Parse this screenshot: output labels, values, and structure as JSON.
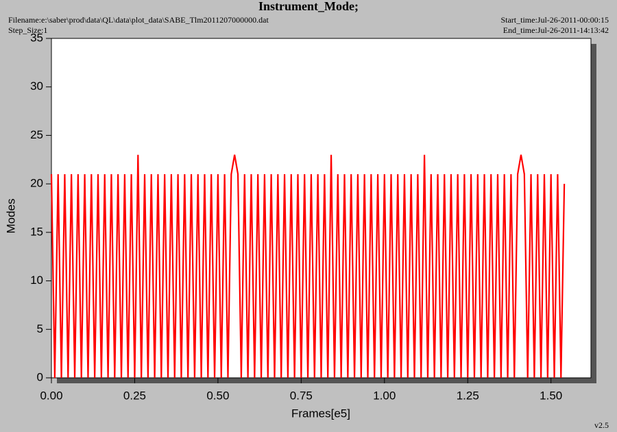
{
  "chart_data": {
    "type": "line",
    "title": "Instrument_Mode;",
    "annotations": [
      "Filename:e:\\saber\\prod\\data\\QL\\data\\plot_data\\SABE_Tlm2011207000000.dat",
      "Step_Size:1",
      "Start_time:Jul-26-2011-00:00:15",
      "End_time:Jul-26-2011-14:13:42",
      "v2.5"
    ],
    "x_label": "Frames[e5]",
    "y_label": "Modes",
    "xlim": [
      0,
      1.62
    ],
    "ylim": [
      0,
      35
    ],
    "xticks": [
      {
        "value": 0,
        "label": "0.00"
      },
      0.25,
      {
        "value": 0.5,
        "label": "0.50"
      },
      0.75,
      {
        "value": 1,
        "label": "1.00"
      },
      1.25,
      {
        "value": 1.5,
        "label": "1.50"
      }
    ],
    "yticks": [
      0,
      5,
      10,
      15,
      20,
      25,
      30,
      35
    ],
    "grid": false,
    "x": [
      0,
      0.01,
      0.02,
      0.03,
      0.04,
      0.05,
      0.06,
      0.07,
      0.08,
      0.09,
      0.1,
      0.11,
      0.12,
      0.13,
      0.14,
      0.15,
      0.16,
      0.17,
      0.18,
      0.19,
      0.2,
      0.21,
      0.22,
      0.23,
      0.24,
      0.25,
      0.26,
      0.27,
      0.28,
      0.29,
      0.3,
      0.31,
      0.32,
      0.33,
      0.34,
      0.35,
      0.36,
      0.37,
      0.38,
      0.39,
      0.4,
      0.41,
      0.42,
      0.43,
      0.44,
      0.45,
      0.46,
      0.47,
      0.48,
      0.49,
      0.5,
      0.51,
      0.52,
      0.53,
      0.54,
      0.55,
      0.56,
      0.57,
      0.58,
      0.59,
      0.6,
      0.61,
      0.62,
      0.63,
      0.64,
      0.65,
      0.66,
      0.67,
      0.68,
      0.69,
      0.7,
      0.71,
      0.72,
      0.73,
      0.74,
      0.75,
      0.76,
      0.77,
      0.78,
      0.79,
      0.8,
      0.81,
      0.82,
      0.83,
      0.84,
      0.85,
      0.86,
      0.87,
      0.88,
      0.89,
      0.9,
      0.91,
      0.92,
      0.93,
      0.94,
      0.95,
      0.96,
      0.97,
      0.98,
      0.99,
      1,
      1.01,
      1.02,
      1.03,
      1.04,
      1.05,
      1.06,
      1.07,
      1.08,
      1.09,
      1.1,
      1.11,
      1.12,
      1.13,
      1.14,
      1.15,
      1.16,
      1.17,
      1.18,
      1.19,
      1.2,
      1.21,
      1.22,
      1.23,
      1.24,
      1.25,
      1.26,
      1.27,
      1.28,
      1.29,
      1.3,
      1.31,
      1.32,
      1.33,
      1.34,
      1.35,
      1.36,
      1.37,
      1.38,
      1.39,
      1.4,
      1.41,
      1.42,
      1.43,
      1.44,
      1.45,
      1.46,
      1.47,
      1.48,
      1.49,
      1.5,
      1.51,
      1.52,
      1.53,
      1.54
    ],
    "series": [
      {
        "name": "Instrument_Mode",
        "color": "#ff0000",
        "values": [
          21,
          0,
          21,
          0,
          21,
          0,
          21,
          0,
          21,
          0,
          21,
          0,
          21,
          0,
          21,
          0,
          21,
          0,
          21,
          0,
          21,
          0,
          21,
          0,
          21,
          0,
          23,
          0,
          21,
          0,
          21,
          0,
          21,
          0,
          21,
          0,
          21,
          0,
          21,
          0,
          21,
          0,
          21,
          0,
          21,
          0,
          21,
          0,
          21,
          0,
          21,
          0,
          21,
          0,
          21,
          23,
          21,
          0,
          21,
          0,
          21,
          0,
          21,
          0,
          21,
          0,
          21,
          0,
          21,
          0,
          21,
          0,
          21,
          0,
          21,
          0,
          21,
          0,
          21,
          0,
          21,
          0,
          21,
          0,
          23,
          0,
          21,
          0,
          21,
          0,
          21,
          0,
          21,
          0,
          21,
          0,
          21,
          0,
          21,
          0,
          21,
          0,
          21,
          0,
          21,
          0,
          21,
          0,
          21,
          0,
          21,
          0,
          23,
          0,
          21,
          0,
          21,
          0,
          21,
          0,
          21,
          0,
          21,
          0,
          21,
          0,
          21,
          0,
          21,
          0,
          21,
          0,
          21,
          0,
          21,
          0,
          21,
          0,
          21,
          0,
          21,
          23,
          21,
          0,
          21,
          0,
          21,
          0,
          21,
          0,
          21,
          0,
          21,
          0,
          20
        ]
      }
    ]
  }
}
